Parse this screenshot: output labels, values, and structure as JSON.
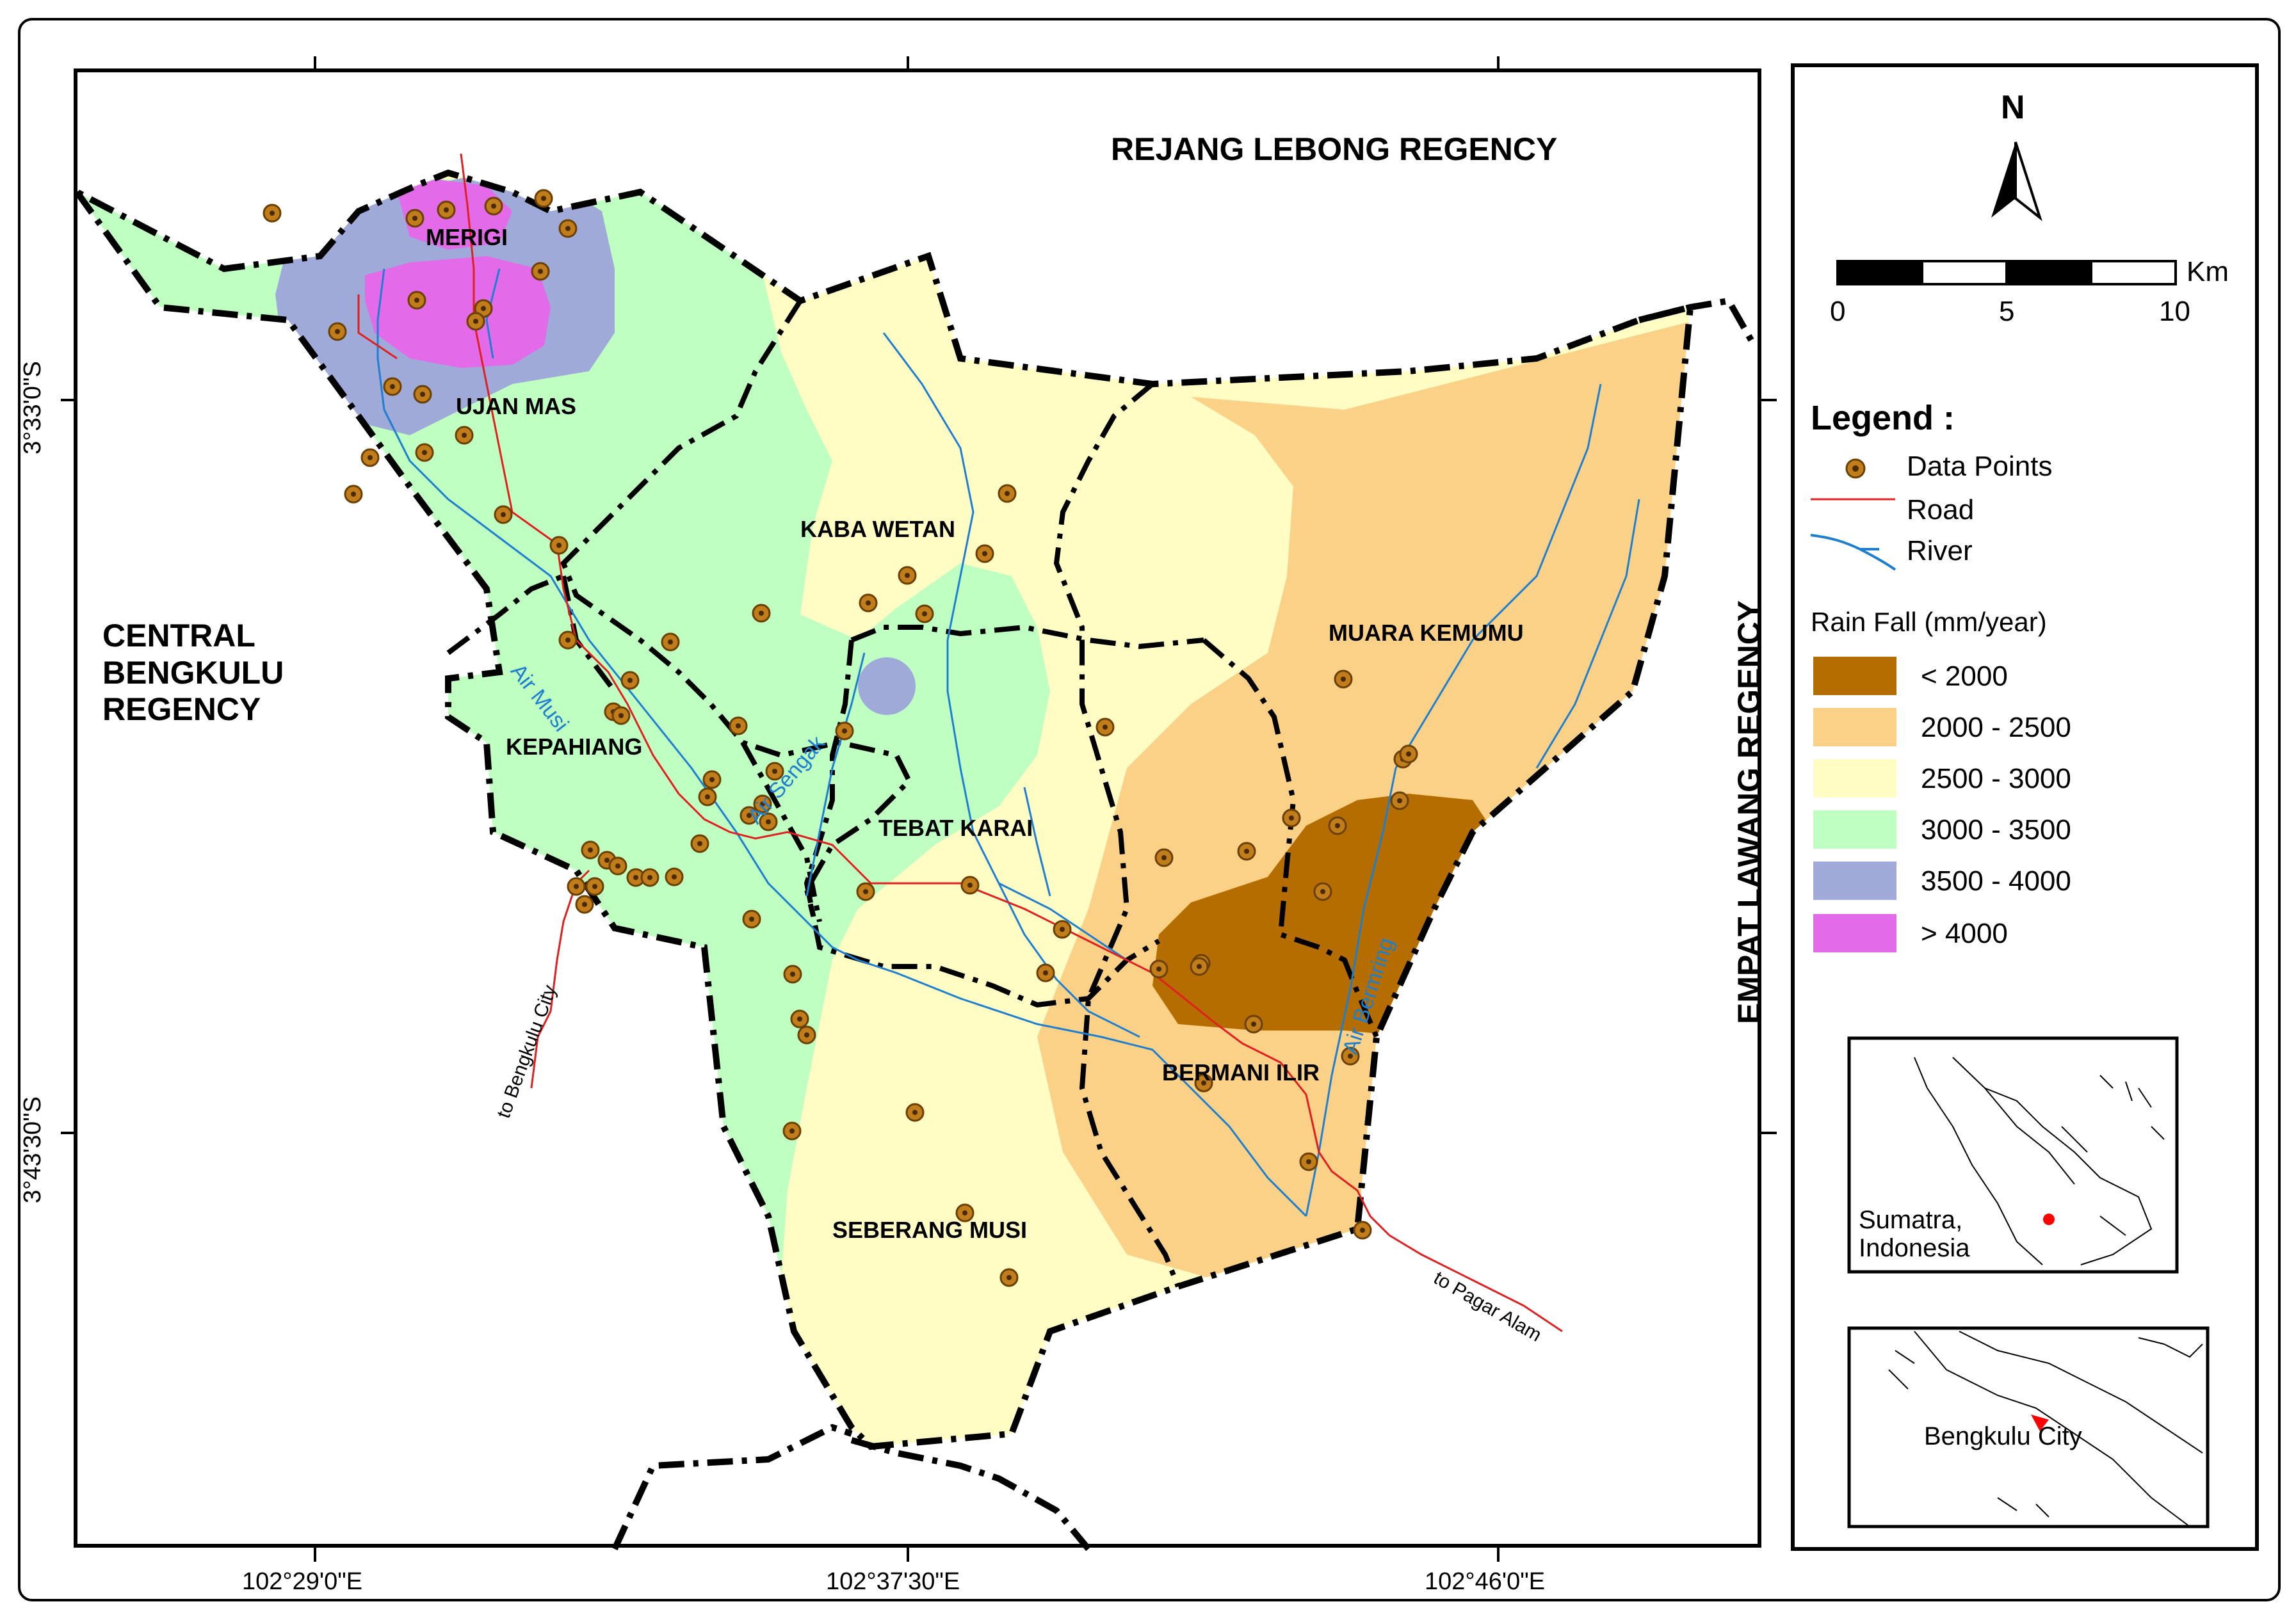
{
  "map": {
    "regencies": [
      "REJANG LEBONG REGENCY",
      "CENTRAL BENGKULU REGENCY",
      "EMPAT LAWANG REGENCY"
    ],
    "central_lines": [
      "CENTRAL",
      "BENGKULU",
      "REGENCY"
    ],
    "districts": [
      "MERIGI",
      "UJAN MAS",
      "KABA WETAN",
      "KEPAHIANG",
      "TEBAT KARAI",
      "MUARA KEMUMU",
      "BERMANI ILIR",
      "SEBERANG MUSI"
    ],
    "rivers": [
      "Air Musi",
      "Air Sengak",
      "Air Bermring"
    ],
    "roads": [
      "to Bengkulu City",
      "to Pagar Alam"
    ],
    "lat_labels": [
      "3°33'0\"S",
      "3°43'30\"S"
    ],
    "lon_labels": [
      "102°29'0\"E",
      "102°37'30\"E",
      "102°46'0\"E"
    ]
  },
  "north": "N",
  "scalebar": {
    "unit": "Km",
    "ticks": [
      "0",
      "5",
      "10"
    ]
  },
  "legend": {
    "title": "Legend :",
    "symbols": [
      "Data Points",
      "Road",
      "River"
    ],
    "rain_title": "Rain Fall (mm/year)",
    "classes": [
      {
        "label": "< 2000",
        "color": "#b56d00"
      },
      {
        "label": "2000 - 2500",
        "color": "#fbd187"
      },
      {
        "label": "2500 - 3000",
        "color": "#fffcc4"
      },
      {
        "label": "3000 - 3500",
        "color": "#bfffc2"
      },
      {
        "label": "3500 - 4000",
        "color": "#9faad9"
      },
      {
        "label": "> 4000",
        "color": "#e36bea"
      }
    ]
  },
  "insets": {
    "sumatra_lines": [
      "Sumatra,",
      "Indonesia"
    ],
    "city": "Bengkulu City"
  },
  "colors": {
    "point": "#9c6b12",
    "road": "#e02020",
    "river": "#1e7fd0",
    "boundary": "#000000"
  }
}
